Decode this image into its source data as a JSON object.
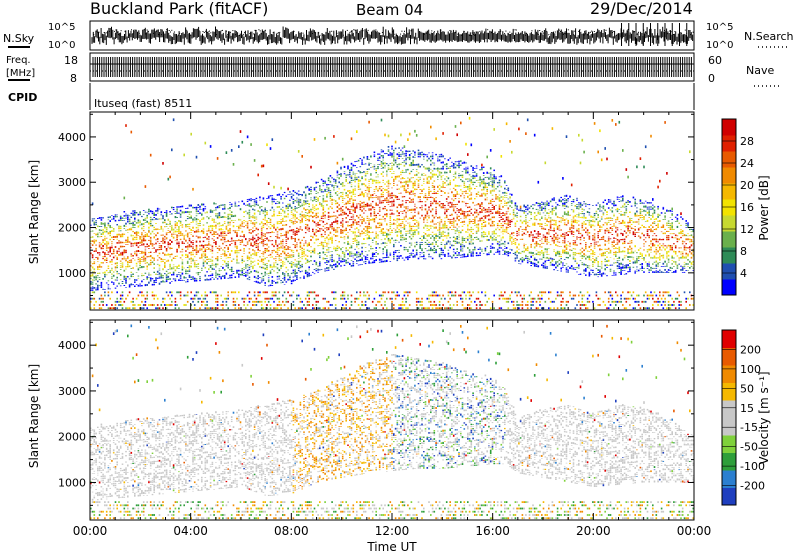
{
  "header": {
    "station": "Buckland Park (fitACF)",
    "beam": "Beam 04",
    "date": "29/Dec/2014"
  },
  "noise_panel": {
    "left_label": "N.Sky",
    "right_label": "N.Search",
    "left_ticks": [
      "10^5",
      "10^0"
    ],
    "right_ticks": [
      "10^5",
      "10^0"
    ]
  },
  "freq_panel": {
    "left_label_line1": "Freq.",
    "left_label_line2": "[MHz]",
    "right_label": "Nave",
    "left_ticks": [
      "18",
      "8"
    ],
    "right_ticks": [
      "60",
      "0"
    ]
  },
  "cpid_panel": {
    "label": "CPID",
    "text": "Ituseq (fast) 8511"
  },
  "colors": {
    "power": [
      "#0000ff",
      "#1f4fb0",
      "#2e8b57",
      "#6ab04c",
      "#c7d930",
      "#f2e300",
      "#f5b800",
      "#f08a00",
      "#e85a00",
      "#e02000",
      "#d00000"
    ],
    "velocity": [
      "#1f3fbf",
      "#2b7fd0",
      "#2e9e3a",
      "#7fd13b",
      "#c8c8c8",
      "#c8c8c8",
      "#f5b800",
      "#f08a00",
      "#e85a00",
      "#e00000"
    ]
  },
  "chart_data": [
    {
      "type": "heatmap",
      "panel": "power",
      "xlabel": "",
      "ylabel": "Slant Range [km]",
      "x_ticks": [
        "00:00",
        "04:00",
        "08:00",
        "12:00",
        "16:00",
        "20:00",
        "00:00"
      ],
      "xlim": [
        0,
        24
      ],
      "y_ticks": [
        1000,
        2000,
        3000,
        4000
      ],
      "ylim": [
        180,
        4550
      ],
      "colorbar": {
        "label": "Power [dB]",
        "ticks": [
          "28",
          "24",
          "20",
          "16",
          "12",
          "8",
          "4"
        ],
        "range": [
          0,
          30
        ]
      },
      "echo_band": {
        "hours": [
          0,
          2,
          4,
          6,
          7,
          8,
          9,
          10,
          11,
          12,
          13,
          14,
          15,
          16,
          16.5,
          17,
          18,
          19,
          20,
          21,
          22,
          23,
          24
        ],
        "lower_km": [
          600,
          700,
          800,
          900,
          700,
          750,
          1000,
          1100,
          1200,
          1250,
          1300,
          1300,
          1350,
          1400,
          1400,
          1200,
          1100,
          1000,
          900,
          950,
          1000,
          1000,
          1000
        ],
        "upper_km": [
          2200,
          2400,
          2500,
          2600,
          2700,
          2800,
          3000,
          3300,
          3600,
          3800,
          3700,
          3600,
          3400,
          3300,
          3000,
          2400,
          2600,
          2700,
          2500,
          2700,
          2600,
          2400,
          2000
        ]
      }
    },
    {
      "type": "heatmap",
      "panel": "velocity",
      "xlabel": "Time UT",
      "ylabel": "Slant Range [km]",
      "x_ticks": [
        "00:00",
        "04:00",
        "08:00",
        "12:00",
        "16:00",
        "20:00",
        "00:00"
      ],
      "xlim": [
        0,
        24
      ],
      "y_ticks": [
        1000,
        2000,
        3000,
        4000
      ],
      "ylim": [
        180,
        4550
      ],
      "colorbar": {
        "label": "Velocity [m s⁻¹]",
        "ticks": [
          "200",
          "100",
          "50",
          "15",
          "-15",
          "-50",
          "-100",
          "-200"
        ],
        "range": [
          -250,
          250
        ]
      }
    }
  ]
}
